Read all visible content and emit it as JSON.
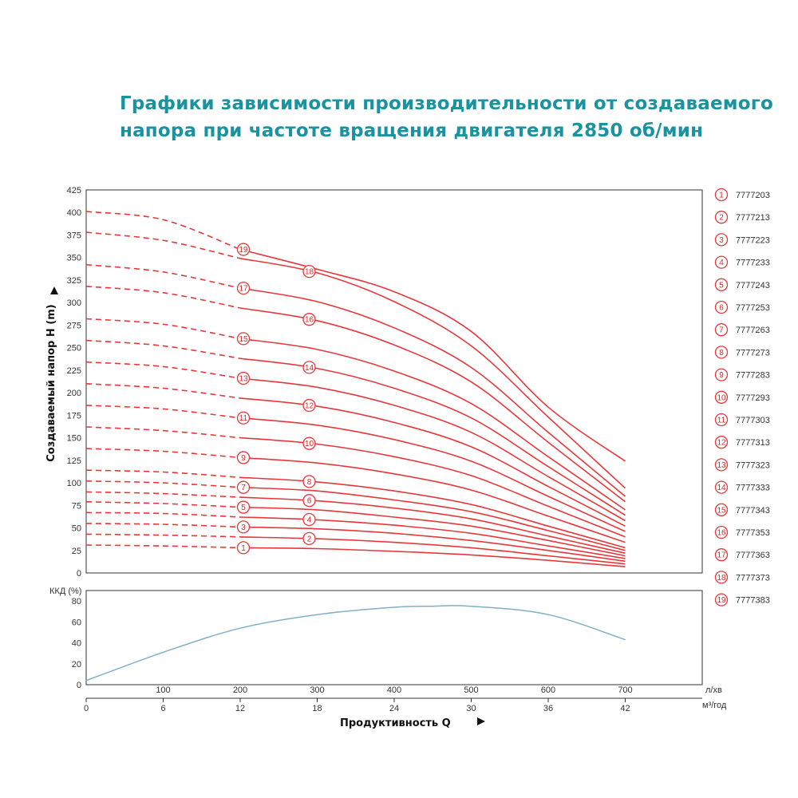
{
  "title": "Графики зависимости производительности от создаваемого напора при частоте вращения двигателя 2850 об/мин",
  "colors": {
    "title": "#1a93a0",
    "curve": "#e6383b",
    "efficiency": "#7fb0c8",
    "frame": "#333333"
  },
  "chart_data": [
    {
      "type": "line",
      "ylabel": "Создаваемый напор H (m)",
      "ylim": [
        0,
        425
      ],
      "yticks": [
        0,
        25,
        50,
        75,
        100,
        125,
        150,
        175,
        200,
        225,
        250,
        275,
        300,
        325,
        350,
        375,
        400,
        425
      ],
      "xlim": [
        0,
        800
      ],
      "dashed_range_lh": [
        0,
        200
      ],
      "solid_range_lh": [
        200,
        700
      ],
      "grid": false,
      "legend_position": "right",
      "series": [
        {
          "name": "7777203",
          "label": "1",
          "x": [
            0,
            100,
            200,
            300,
            400,
            500,
            600,
            700
          ],
          "y": [
            31,
            30,
            28,
            27,
            24,
            20,
            14,
            7
          ]
        },
        {
          "name": "7777213",
          "label": "2",
          "x": [
            0,
            100,
            200,
            300,
            400,
            500,
            600,
            700
          ],
          "y": [
            43,
            42,
            40,
            38,
            34,
            28,
            19,
            10
          ]
        },
        {
          "name": "7777223",
          "label": "3",
          "x": [
            0,
            100,
            200,
            300,
            400,
            500,
            600,
            700
          ],
          "y": [
            55,
            54,
            51,
            49,
            44,
            36,
            25,
            13
          ]
        },
        {
          "name": "7777233",
          "label": "4",
          "x": [
            0,
            100,
            200,
            300,
            400,
            500,
            600,
            700
          ],
          "y": [
            67,
            66,
            62,
            59,
            53,
            44,
            30,
            16
          ]
        },
        {
          "name": "7777243",
          "label": "5",
          "x": [
            0,
            100,
            200,
            300,
            400,
            500,
            600,
            700
          ],
          "y": [
            79,
            77,
            73,
            70,
            62,
            52,
            36,
            19
          ]
        },
        {
          "name": "7777253",
          "label": "6",
          "x": [
            0,
            100,
            200,
            300,
            400,
            500,
            600,
            700
          ],
          "y": [
            90,
            88,
            84,
            80,
            72,
            60,
            41,
            22
          ]
        },
        {
          "name": "7777263",
          "label": "7",
          "x": [
            0,
            100,
            200,
            300,
            400,
            500,
            600,
            700
          ],
          "y": [
            102,
            100,
            95,
            91,
            81,
            68,
            47,
            25
          ]
        },
        {
          "name": "7777273",
          "label": "8",
          "x": [
            0,
            100,
            200,
            300,
            400,
            500,
            600,
            700
          ],
          "y": [
            114,
            112,
            106,
            101,
            91,
            76,
            52,
            28
          ]
        },
        {
          "name": "7777283",
          "label": "9",
          "x": [
            0,
            100,
            200,
            300,
            400,
            500,
            600,
            700
          ],
          "y": [
            138,
            135,
            128,
            122,
            110,
            92,
            63,
            34
          ]
        },
        {
          "name": "7777293",
          "label": "10",
          "x": [
            0,
            100,
            200,
            300,
            400,
            500,
            600,
            700
          ],
          "y": [
            162,
            158,
            150,
            143,
            129,
            108,
            74,
            40
          ]
        },
        {
          "name": "7777303",
          "label": "11",
          "x": [
            0,
            100,
            200,
            300,
            400,
            500,
            600,
            700
          ],
          "y": [
            186,
            182,
            172,
            164,
            148,
            124,
            85,
            46
          ]
        },
        {
          "name": "7777313",
          "label": "12",
          "x": [
            0,
            100,
            200,
            300,
            400,
            500,
            600,
            700
          ],
          "y": [
            210,
            205,
            194,
            185,
            167,
            140,
            96,
            52
          ]
        },
        {
          "name": "7777323",
          "label": "13",
          "x": [
            0,
            100,
            200,
            300,
            400,
            500,
            600,
            700
          ],
          "y": [
            234,
            229,
            216,
            206,
            186,
            156,
            107,
            58
          ]
        },
        {
          "name": "7777333",
          "label": "14",
          "x": [
            0,
            100,
            200,
            300,
            400,
            500,
            600,
            700
          ],
          "y": [
            258,
            252,
            238,
            227,
            205,
            172,
            118,
            64
          ]
        },
        {
          "name": "7777343",
          "label": "15",
          "x": [
            0,
            100,
            200,
            300,
            400,
            500,
            600,
            700
          ],
          "y": [
            282,
            276,
            260,
            248,
            224,
            188,
            129,
            70
          ]
        },
        {
          "name": "7777353",
          "label": "16",
          "x": [
            0,
            100,
            200,
            300,
            400,
            500,
            600,
            700
          ],
          "y": [
            318,
            311,
            294,
            280,
            253,
            212,
            145,
            79
          ]
        },
        {
          "name": "7777363",
          "label": "17",
          "x": [
            0,
            100,
            200,
            300,
            400,
            500,
            600,
            700
          ],
          "y": [
            342,
            334,
            316,
            301,
            272,
            228,
            156,
            85
          ]
        },
        {
          "name": "7777373",
          "label": "18",
          "x": [
            0,
            100,
            200,
            300,
            400,
            500,
            600,
            700
          ],
          "y": [
            378,
            369,
            349,
            333,
            301,
            252,
            173,
            94
          ]
        },
        {
          "name": "7777383",
          "label": "19",
          "x": [
            0,
            100,
            200,
            300,
            400,
            500,
            600,
            700
          ],
          "y": [
            401,
            392,
            359,
            337,
            312,
            268,
            184,
            124
          ]
        }
      ]
    },
    {
      "type": "line",
      "ylabel": "ККД (%)",
      "ylim": [
        0,
        90
      ],
      "yticks": [
        0,
        20,
        40,
        60,
        80
      ],
      "xlim": [
        0,
        800
      ],
      "grid": false,
      "series": [
        {
          "x": [
            0,
            100,
            200,
            300,
            400,
            450,
            500,
            600,
            700
          ],
          "y": [
            4,
            31,
            54,
            67,
            74,
            75,
            75,
            67,
            43
          ]
        }
      ]
    }
  ],
  "x_axis": {
    "lh_ticks": [
      100,
      200,
      300,
      400,
      500,
      600,
      700
    ],
    "m3_ticks": [
      0,
      6,
      12,
      18,
      24,
      30,
      36,
      42
    ],
    "lh_unit": "л/хв",
    "m3_unit": "м³/год",
    "label": "Продуктивность Q"
  }
}
